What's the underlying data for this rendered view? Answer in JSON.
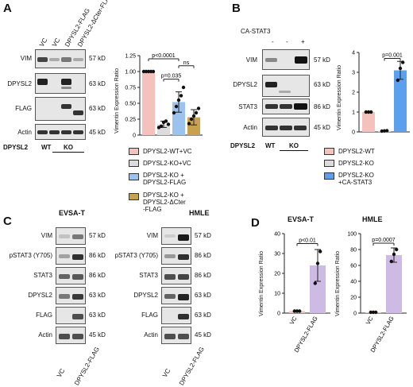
{
  "panels": {
    "A": {
      "letter": "A",
      "lanes": [
        "VC",
        "VC",
        "DPYSL2-FLAG",
        "DPYSL2-ΔCter-FLAG"
      ],
      "blots": [
        {
          "name": "VIM",
          "kd": "57 kD"
        },
        {
          "name": "DPYSL2",
          "kd": "63 kD"
        },
        {
          "name": "FLAG",
          "kd": "63 kD"
        },
        {
          "name": "Actin",
          "kd": "45 kD"
        }
      ],
      "genotype_label": "DPYSL2",
      "genotypes": [
        "WT",
        "KO"
      ],
      "chart_data": {
        "type": "bar",
        "ylabel": "Vimentin Expression Ratio",
        "ylim": [
          0,
          1.25
        ],
        "yticks": [
          "0",
          "0.25",
          "0.50",
          "0.75",
          "1.00",
          "1.25"
        ],
        "series": [
          {
            "name": "DPYSL2-WT+VC",
            "value": 1.0,
            "err": 0.0,
            "color": "#f4c1bd",
            "points": [
              1.0,
              1.0,
              1.0,
              1.0,
              1.0
            ]
          },
          {
            "name": "DPYSL2-KO+VC",
            "value": 0.17,
            "err": 0.05,
            "color": "#dcdcdc",
            "points": [
              0.12,
              0.14,
              0.2,
              0.22,
              0.17
            ]
          },
          {
            "name": "DPYSL2-KO + DPYSL2-FLAG",
            "value": 0.52,
            "err": 0.16,
            "color": "#9cc3ee",
            "points": [
              0.35,
              0.45,
              0.55,
              0.62,
              0.75
            ]
          },
          {
            "name": "DPYSL2-KO + DPYSL2-ΔCter -FLAG",
            "value": 0.28,
            "err": 0.12,
            "color": "#c9a14e",
            "points": [
              0.18,
              0.25,
              0.3,
              0.35,
              0.42
            ]
          }
        ],
        "annotations": [
          "p<0.0001",
          "p=0.035",
          "ns"
        ]
      },
      "legend": [
        {
          "lines": [
            "DPYSL2-WT+VC"
          ],
          "color": "#f4c1bd"
        },
        {
          "lines": [
            "DPYSL2-KO+VC"
          ],
          "color": "#dcdcdc"
        },
        {
          "lines": [
            "DPYSL2-KO +",
            "DPYSL2-FLAG"
          ],
          "color": "#9cc3ee"
        },
        {
          "lines": [
            "DPYSL2-KO +",
            "DPYSL2-ΔCter",
            "-FLAG"
          ],
          "color": "#c9a14e"
        }
      ]
    },
    "B": {
      "letter": "B",
      "treatment_label": "CA-STAT3",
      "treatment_signs": [
        "-",
        "-",
        "+"
      ],
      "blots": [
        {
          "name": "VIM",
          "kd": "57 kD"
        },
        {
          "name": "DPYSL2",
          "kd": "63 kD"
        },
        {
          "name": "STAT3",
          "kd": "86 kD"
        },
        {
          "name": "Actin",
          "kd": "45 kD"
        }
      ],
      "genotype_label": "DPYSL2",
      "genotypes": [
        "WT",
        "KO"
      ],
      "chart_data": {
        "type": "bar",
        "ylabel": "Vimentin Expression Ratio",
        "ylim": [
          0,
          4
        ],
        "yticks": [
          "0",
          "1",
          "2",
          "3",
          "4"
        ],
        "series": [
          {
            "name": "DPYSL2-WT",
            "value": 1.0,
            "err": 0.0,
            "color": "#f4c1bd",
            "points": [
              1.0,
              1.0,
              1.0
            ]
          },
          {
            "name": "DPYSL2-KO",
            "value": 0.05,
            "err": 0.02,
            "color": "#dcdcdc",
            "points": [
              0.04,
              0.05,
              0.06
            ]
          },
          {
            "name": "DPYSL2-KO +CA-STAT3",
            "value": 3.1,
            "err": 0.45,
            "color": "#5aa0ee",
            "points": [
              2.6,
              3.2,
              3.5
            ]
          }
        ],
        "annotations": [
          "p=0.001"
        ]
      },
      "legend": [
        {
          "lines": [
            "DPYSL2-WT"
          ],
          "color": "#f4c1bd"
        },
        {
          "lines": [
            "DPYSL2-KO"
          ],
          "color": "#dcdcdc"
        },
        {
          "lines": [
            "DPYSL2-KO",
            "+CA-STAT3"
          ],
          "color": "#5aa0ee"
        }
      ]
    },
    "C": {
      "letter": "C",
      "cells": [
        "EVSA-T",
        "HMLE"
      ],
      "blots": [
        {
          "name": "VIM",
          "kd": "57 kD"
        },
        {
          "name": "pSTAT3 (Y705)",
          "kd": "86 kD"
        },
        {
          "name": "STAT3",
          "kd": "86 kD"
        },
        {
          "name": "DPYSL2",
          "kd": "63 kD"
        },
        {
          "name": "FLAG",
          "kd": "63 kD"
        },
        {
          "name": "Actin",
          "kd": "45 kD"
        }
      ],
      "lanes": [
        "VC",
        "DPYSL2-FLAG"
      ]
    },
    "D": {
      "letter": "D",
      "chart_data": [
        {
          "type": "bar",
          "title": "EVSA-T",
          "ylabel": "Vimentin Expression Ratio",
          "ylim": [
            0,
            40
          ],
          "yticks": [
            "0",
            "10",
            "20",
            "30",
            "40"
          ],
          "categories": [
            "VC",
            "DPYSL2-FLAG"
          ],
          "values": [
            1.0,
            24.0
          ],
          "errors": [
            0.0,
            8.0
          ],
          "colors": [
            "#f4c1bd",
            "#cdbbe6"
          ],
          "points": [
            [
              1,
              1,
              1
            ],
            [
              15,
              25,
              31
            ]
          ],
          "annotations": [
            "p<0.01"
          ]
        },
        {
          "type": "bar",
          "title": "HMLE",
          "ylabel": "Vimentin Expression Ratio",
          "ylim": [
            0,
            100
          ],
          "yticks": [
            "0",
            "20",
            "40",
            "60",
            "80",
            "100"
          ],
          "categories": [
            "VC",
            "DPYSL2-FLAG"
          ],
          "values": [
            1.0,
            73.0
          ],
          "errors": [
            0.0,
            9.0
          ],
          "colors": [
            "#f4c1bd",
            "#cdbbe6"
          ],
          "points": [
            [
              1,
              1,
              1
            ],
            [
              65,
              74,
              80
            ]
          ],
          "annotations": [
            "p=0.0007"
          ]
        }
      ]
    }
  }
}
